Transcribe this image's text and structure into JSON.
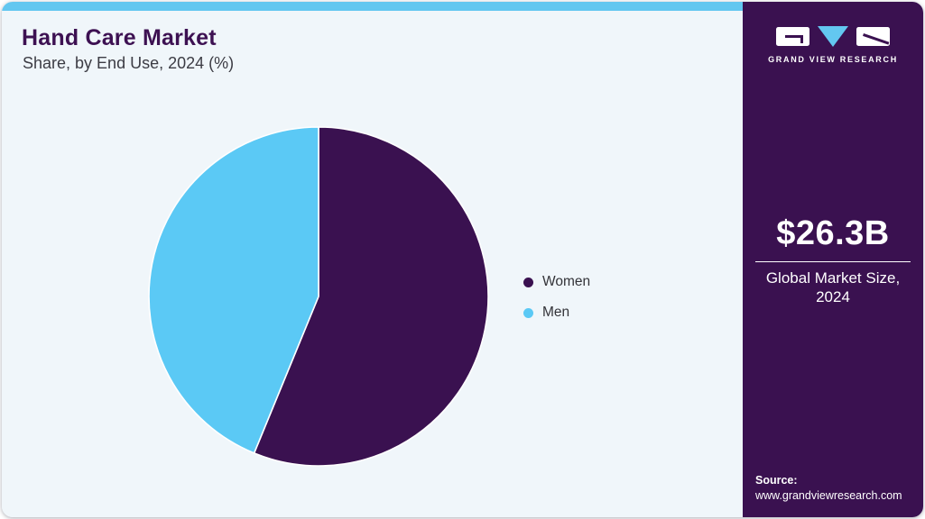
{
  "header": {
    "title": "Hand Care Market",
    "subtitle": "Share, by End Use, 2024 (%)"
  },
  "chart_data": {
    "type": "pie",
    "title": "Hand Care Market Share, by End Use, 2024 (%)",
    "categories": [
      "Women",
      "Men"
    ],
    "values": [
      56.2,
      43.8
    ],
    "unit": "%",
    "colors": [
      "#3a1150",
      "#5bc9f5"
    ],
    "start_angle_deg": 0,
    "direction": "clockwise",
    "legend_position": "right",
    "data_labels": false
  },
  "sidebar": {
    "logo_text": "GRAND VIEW RESEARCH",
    "market_size": "$26.3B",
    "market_label_line1": "Global Market Size,",
    "market_label_line2": "2024",
    "source_label": "Source:",
    "source_url": "www.grandviewresearch.com"
  },
  "colors": {
    "sidebar_bg": "#3a1150",
    "accent_bar": "#63c7f0",
    "pie_women": "#3a1150",
    "pie_men": "#5bc9f5",
    "main_bg": "#f0f6fa",
    "title_text": "#3d1152"
  }
}
